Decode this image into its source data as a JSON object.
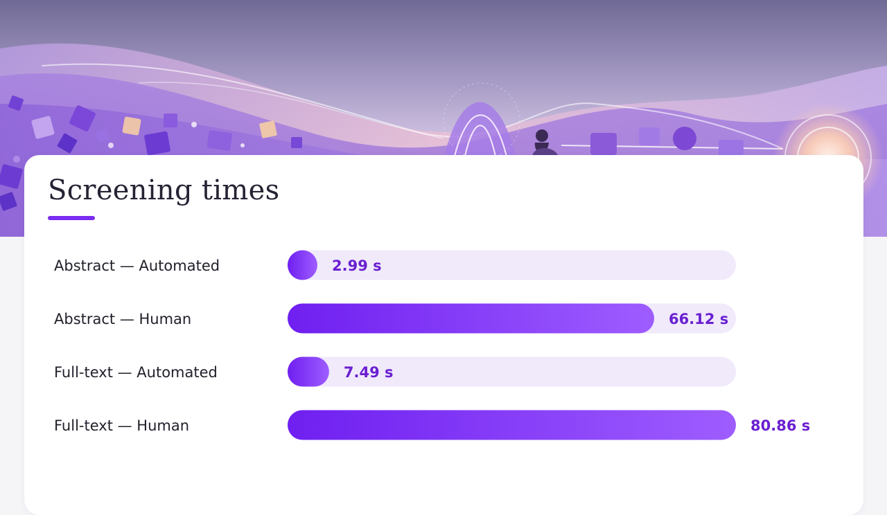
{
  "chart_data": {
    "type": "bar",
    "orientation": "horizontal",
    "title": "Screening times",
    "categories": [
      "Abstract — Automated",
      "Abstract — Human",
      "Full-text — Automated",
      "Full-text — Human"
    ],
    "values": [
      2.99,
      66.12,
      7.49,
      80.86
    ],
    "value_labels": [
      "2.99 s",
      "66.12 s",
      "7.49 s",
      "80.86 s"
    ],
    "unit": "s",
    "xlim": [
      0,
      80.86
    ],
    "grid": false,
    "legend": "none"
  },
  "colors": {
    "bar_start": "#6f1ff0",
    "bar_end": "#9e5dff",
    "track": "#f0eafb",
    "value_text": "#6a1fd0",
    "accent": "#7a2cf0"
  }
}
